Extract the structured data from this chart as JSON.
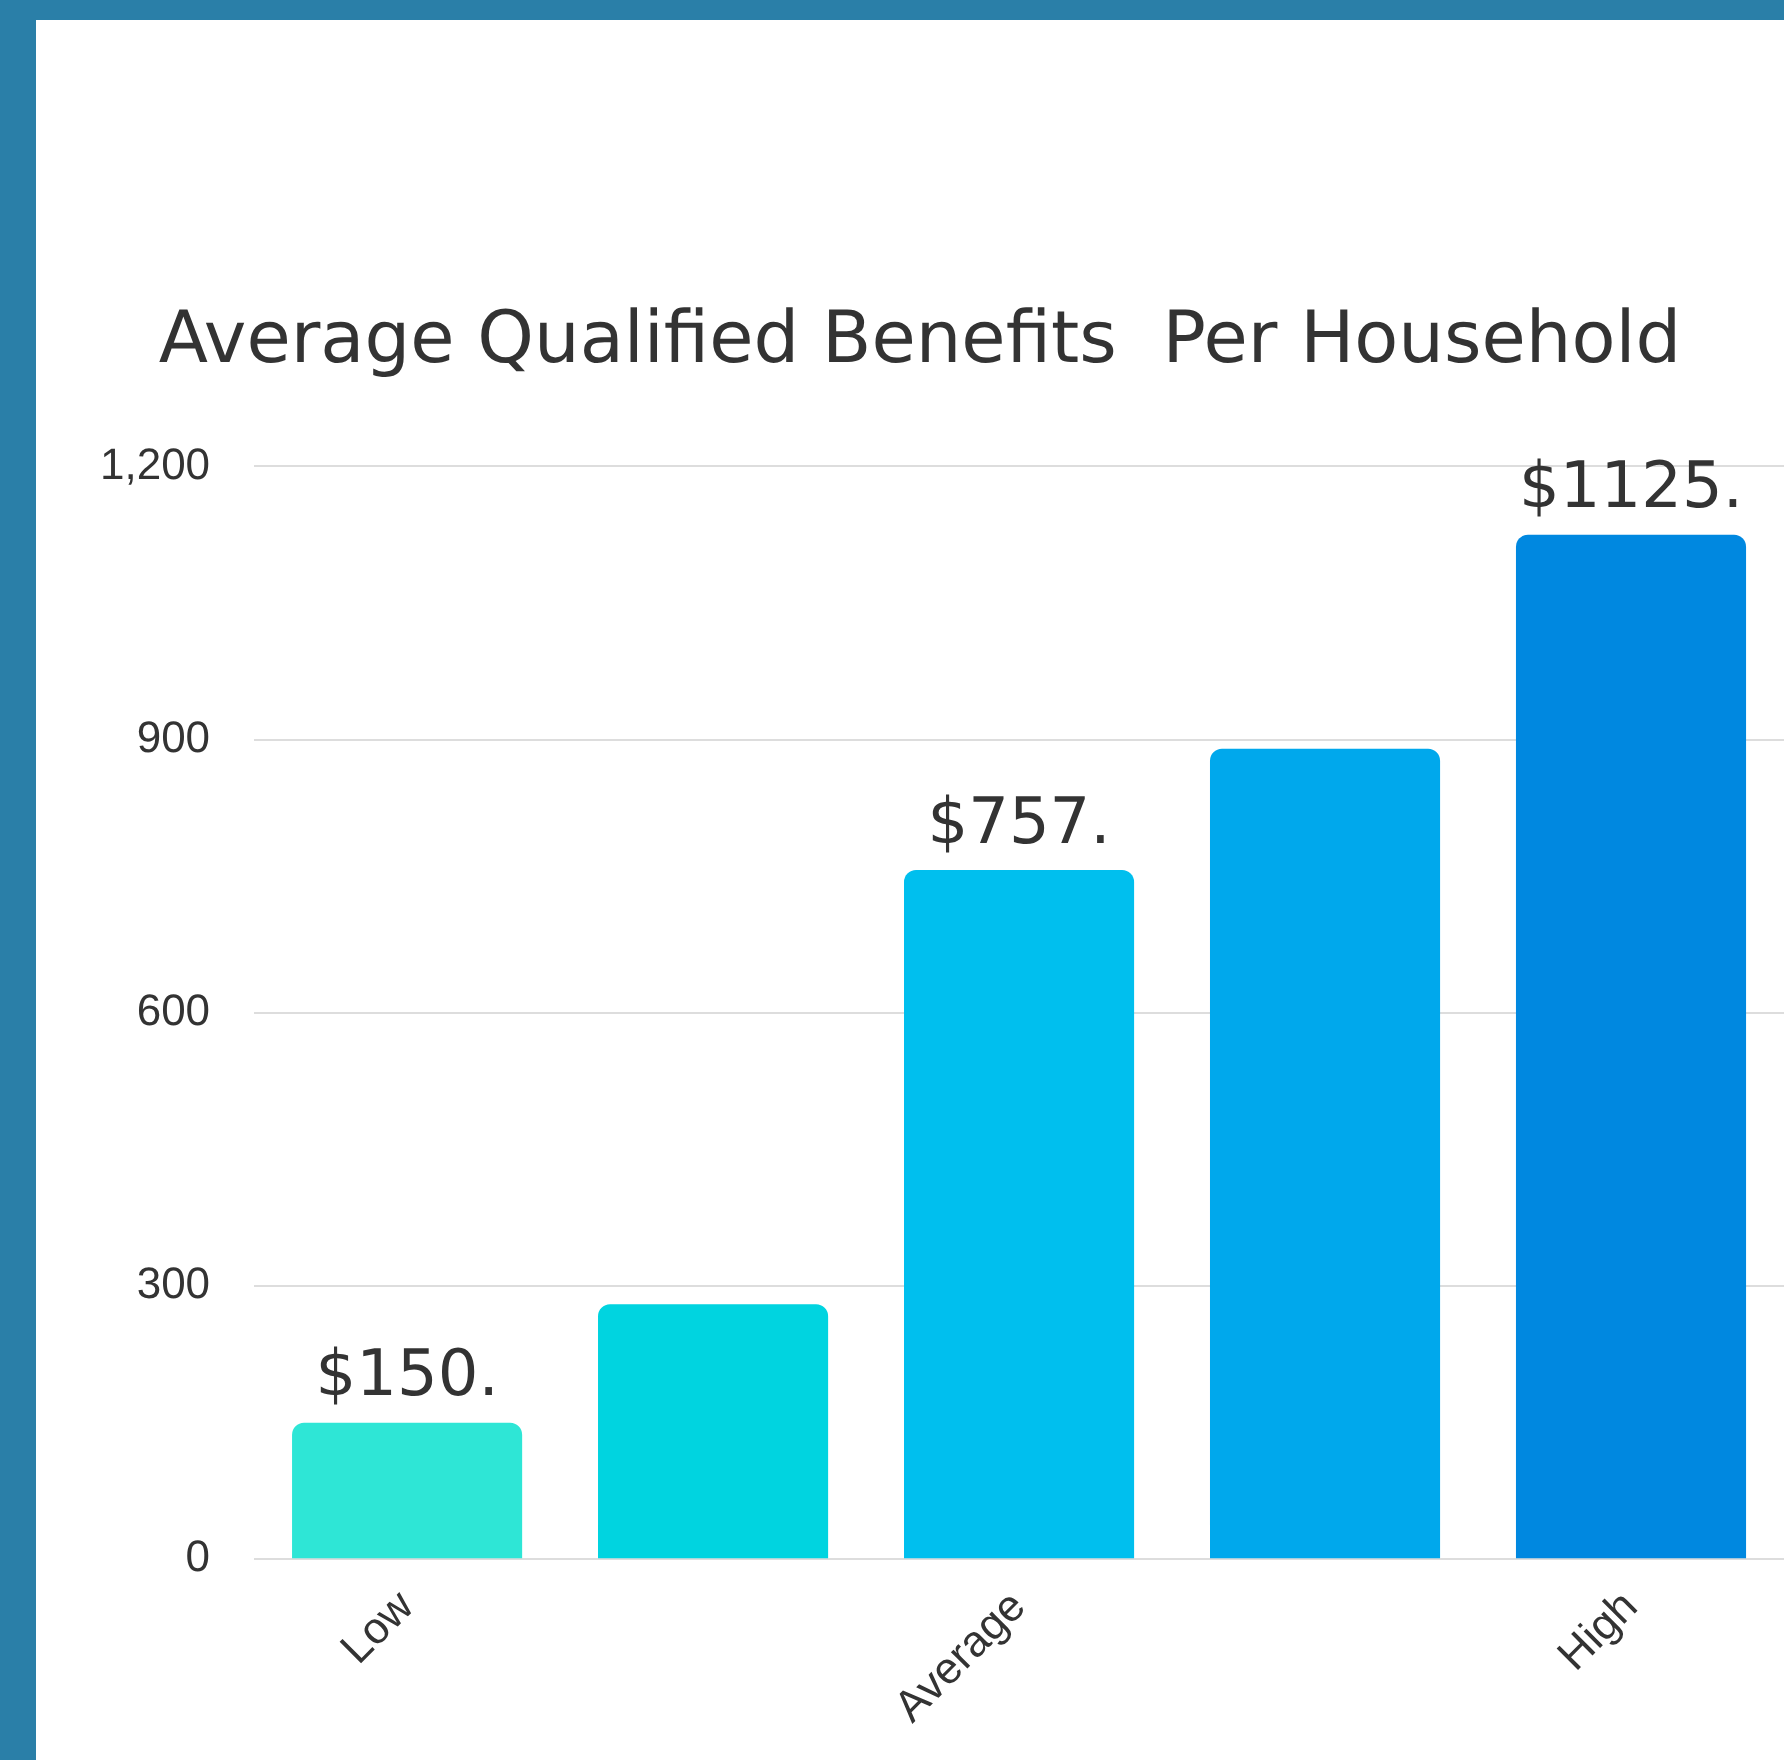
{
  "chart_data": {
    "type": "bar",
    "title": "Average Qualified Benefits  Per Household",
    "categories": [
      "Low",
      null,
      "Average",
      null,
      "High"
    ],
    "values": [
      150,
      280,
      757,
      890,
      1125
    ],
    "colors": [
      "#2ee6d6",
      "#00d4e0",
      "#00bfee",
      "#00a8ec",
      "#0088e0"
    ],
    "value_labels": [
      "$150.",
      null,
      "$757.",
      null,
      "$1125."
    ],
    "ylim": [
      0,
      1200
    ],
    "yticks": [
      0,
      {
        "value": 300,
        "label": "300"
      },
      {
        "value": 600,
        "label": "600"
      },
      {
        "value": 900,
        "label": "900"
      },
      {
        "value": 1200,
        "label": "1,200"
      }
    ],
    "grid": "y",
    "legend": false
  }
}
